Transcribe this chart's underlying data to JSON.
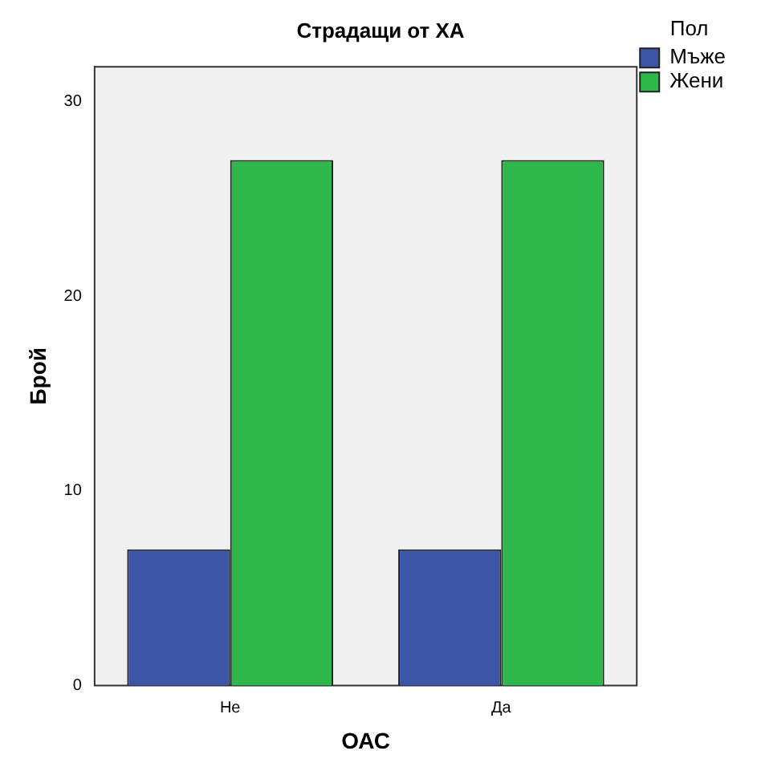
{
  "chart_data": {
    "type": "bar",
    "title": "Страдащи от ХА",
    "xlabel": "ОАС",
    "ylabel": "Брой",
    "legend_title": "Пол",
    "categories": [
      "Не",
      "Да"
    ],
    "series": [
      {
        "name": "Мъже",
        "color": "#3d55a7",
        "values": [
          7,
          7
        ]
      },
      {
        "name": "Жени",
        "color": "#2eb84b",
        "values": [
          27,
          27
        ]
      }
    ],
    "ylim": [
      0,
      31.8
    ],
    "yticks": [
      0,
      10,
      20,
      30
    ],
    "grid": false,
    "legend": "right"
  }
}
